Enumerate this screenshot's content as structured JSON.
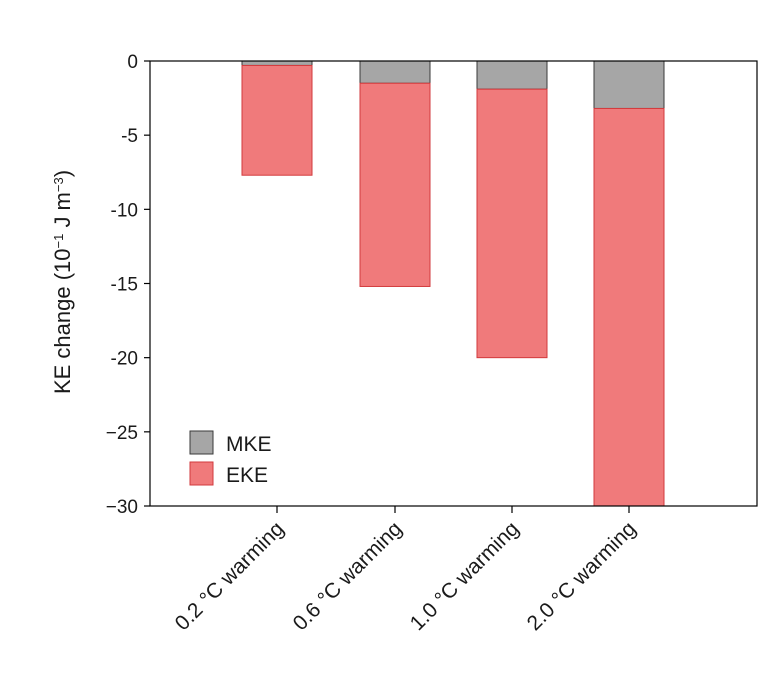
{
  "chart_data": {
    "type": "bar",
    "stacked": true,
    "categories": [
      "0.2 °C warming",
      "0.6 °C warming",
      "1.0 °C warming",
      "2.0 °C warming"
    ],
    "series": [
      {
        "name": "MKE",
        "values": [
          -0.3,
          -1.5,
          -1.9,
          -3.2
        ],
        "color": "#a6a6a6",
        "stroke": "#3a3a3a"
      },
      {
        "name": "EKE",
        "values": [
          -7.4,
          -13.7,
          -18.1,
          -26.8
        ],
        "color": "#f07a7b",
        "stroke": "#d23a3c"
      }
    ],
    "ylabel_main": "KE change (10",
    "ylabel_exp1": "−1",
    "ylabel_mid": " J m",
    "ylabel_exp2": "−3",
    "ylabel_end": ")",
    "ylim": [
      -30,
      0
    ],
    "yticks": [
      0,
      -5,
      -10,
      -15,
      -20,
      -25,
      -30
    ],
    "ytick_labels": [
      "0",
      "-5",
      "-10",
      "-15",
      "-20",
      "−25",
      "−30"
    ],
    "legend_position": "bottom-left",
    "grid": false
  }
}
